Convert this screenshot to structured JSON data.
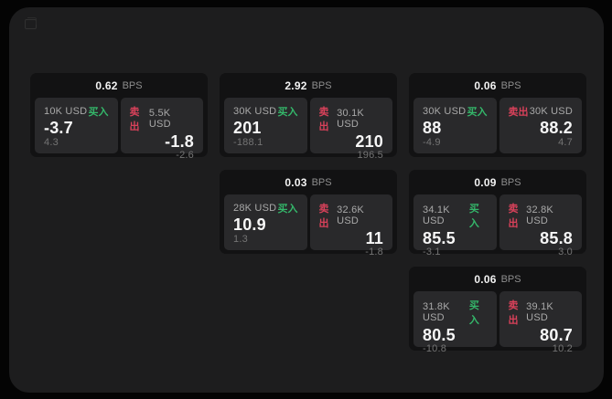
{
  "labels": {
    "bps_unit": "BPS",
    "buy": "买入",
    "sell": "卖出"
  },
  "colors": {
    "page_bg": "#040404",
    "window_bg": "#1d1d1e",
    "card_bg": "#121213",
    "panel_bg": "#29292b",
    "buy_green": "#34b76a",
    "sell_red": "#d8415a"
  },
  "icons": {
    "window_restore": "restore-icon"
  },
  "cards": [
    {
      "bps": "0.62",
      "buy": {
        "size": "10K USD",
        "price": "-3.7",
        "change": "4.3"
      },
      "sell": {
        "size": "5.5K USD",
        "price": "-1.8",
        "change": "-2.6"
      }
    },
    {
      "bps": "2.92",
      "buy": {
        "size": "30K USD",
        "price": "201",
        "change": "-188.1"
      },
      "sell": {
        "size": "30.1K USD",
        "price": "210",
        "change": "196.5"
      }
    },
    {
      "bps": "0.06",
      "buy": {
        "size": "30K USD",
        "price": "88",
        "change": "-4.9"
      },
      "sell": {
        "size": "30K USD",
        "price": "88.2",
        "change": "4.7"
      }
    },
    {
      "bps": "0.03",
      "buy": {
        "size": "28K USD",
        "price": "10.9",
        "change": "1.3"
      },
      "sell": {
        "size": "32.6K USD",
        "price": "11",
        "change": "-1.8"
      }
    },
    {
      "bps": "0.09",
      "buy": {
        "size": "34.1K USD",
        "price": "85.5",
        "change": "-3.1"
      },
      "sell": {
        "size": "32.8K USD",
        "price": "85.8",
        "change": "3.0"
      }
    },
    {
      "bps": "0.06",
      "buy": {
        "size": "31.8K USD",
        "price": "80.5",
        "change": "-10.8"
      },
      "sell": {
        "size": "39.1K USD",
        "price": "80.7",
        "change": "10.2"
      }
    }
  ]
}
